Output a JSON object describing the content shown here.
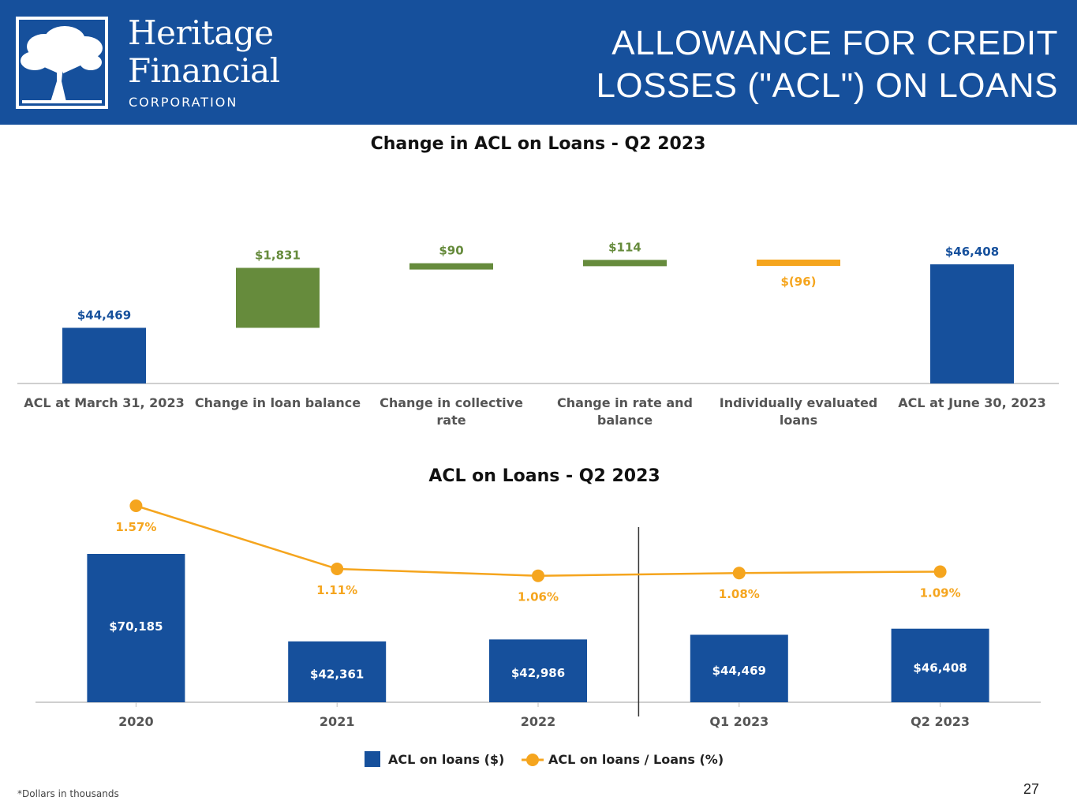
{
  "header": {
    "logo": {
      "line1": "Heritage",
      "line2": "Financial",
      "line3": "CORPORATION"
    },
    "title_line1": "ALLOWANCE FOR CREDIT",
    "title_line2": "LOSSES (\"ACL\") ON LOANS"
  },
  "colors": {
    "header_bg": "#16509c",
    "blue": "#16509c",
    "green": "#668b3c",
    "orange": "#f5a51e"
  },
  "chart_data": [
    {
      "type": "bar",
      "subtype": "waterfall",
      "title": "Change in ACL on Loans - Q2 2023",
      "categories": [
        "ACL at March 31, 2023",
        "Change in loan balance",
        "Change in collective rate",
        "Change in rate and balance",
        "Individually evaluated loans",
        "ACL at June 30, 2023"
      ],
      "values": [
        44469,
        1831,
        90,
        114,
        -96,
        46408
      ],
      "kinds": [
        "total",
        "increase",
        "increase",
        "increase",
        "decrease",
        "total"
      ],
      "labels": [
        "$44,469",
        "$1,831",
        "$90",
        "$114",
        "$(96)",
        "$46,408"
      ],
      "xlabel": "",
      "ylabel": ""
    },
    {
      "type": "bar",
      "subtype": "bar+line",
      "title": "ACL on Loans - Q2 2023",
      "categories": [
        "2020",
        "2021",
        "2022",
        "Q1 2023",
        "Q2 2023"
      ],
      "series": [
        {
          "name": "ACL on loans ($)",
          "type": "bar",
          "values": [
            70185,
            42361,
            42986,
            44469,
            46408
          ],
          "labels": [
            "$70,185",
            "$42,361",
            "$42,986",
            "$44,469",
            "$46,408"
          ]
        },
        {
          "name": "ACL on loans / Loans (%)",
          "type": "line",
          "values": [
            1.57,
            1.11,
            1.06,
            1.08,
            1.09
          ],
          "labels": [
            "1.57%",
            "1.11%",
            "1.06%",
            "1.08%",
            "1.09%"
          ]
        }
      ],
      "divider_after": "2022",
      "legend": "bottom-center",
      "xlabel": "",
      "ylabel": ""
    }
  ],
  "footnote": "*Dollars in thousands",
  "page_number": "27"
}
